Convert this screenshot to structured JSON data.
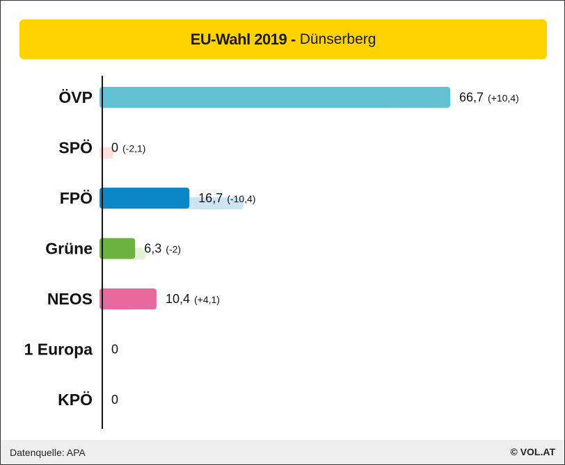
{
  "title": {
    "main": "EU-Wahl 2019 -",
    "sub": "Dünserberg"
  },
  "footer": {
    "source": "Datenquelle: APA",
    "brand": "© VOL.AT"
  },
  "chart_data": {
    "type": "bar",
    "orientation": "horizontal",
    "categories": [
      "ÖVP",
      "SPÖ",
      "FPÖ",
      "Grüne",
      "NEOS",
      "1 Europa",
      "KPÖ"
    ],
    "series": [
      {
        "values": [
          66.7,
          0,
          16.7,
          6.3,
          10.4,
          0,
          0
        ]
      },
      {
        "values": [
          56.3,
          2.1,
          27.1,
          8.3,
          6.3,
          0,
          0
        ]
      }
    ],
    "value_labels": [
      "66,7",
      "0",
      "16,7",
      "6,3",
      "10,4",
      "0",
      "0"
    ],
    "change_labels": [
      "(+10,4)",
      "(-2,1)",
      "(-10,4)",
      "(-2)",
      "(+4,1)",
      "",
      ""
    ],
    "colors": [
      "#62c2d1",
      "#e9534f",
      "#0b86c6",
      "#6db33f",
      "#e8699e",
      "#999999",
      "#999999"
    ],
    "colors_previous": [
      "#dff2f6",
      "#fde0dc",
      "#cde4f3",
      "#e3f1d8",
      "#fbe0ea",
      "#eeeeee",
      "#eeeeee"
    ],
    "xlim": [
      0,
      66.7
    ],
    "grid": false,
    "legend": "none"
  }
}
